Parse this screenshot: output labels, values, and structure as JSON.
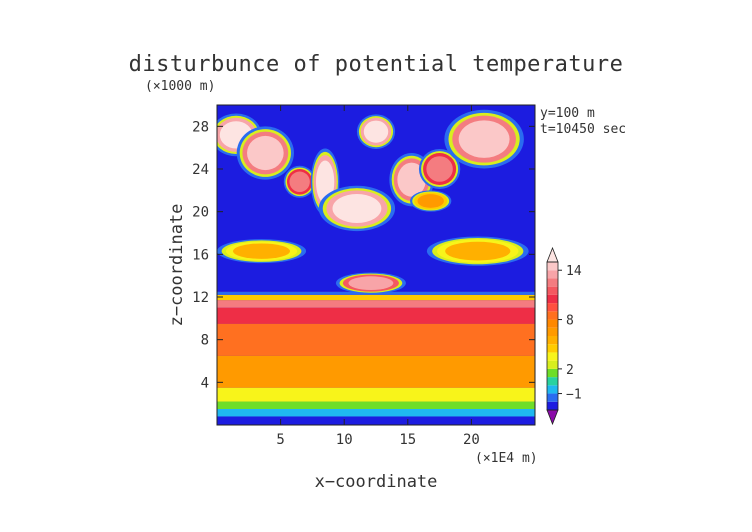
{
  "chart_data": {
    "type": "heatmap",
    "title": "disturbunce of potential temperature",
    "xlabel": "x−coordinate",
    "ylabel": "z−coordinate",
    "x_unit": "(×1E4 m)",
    "y_unit": "(×1000 m)",
    "annotations": [
      "y=100 m",
      "t=10450 sec"
    ],
    "xlim": [
      0,
      25
    ],
    "ylim": [
      0,
      30
    ],
    "x_ticks": [
      5,
      10,
      15,
      20
    ],
    "y_ticks": [
      4,
      8,
      12,
      16,
      20,
      24,
      28
    ],
    "colorbar": {
      "levels": [
        -3,
        -2,
        -1,
        0,
        1,
        2,
        3,
        4,
        5,
        6,
        7,
        8,
        9,
        10,
        11,
        12,
        13,
        14,
        15
      ],
      "colors": [
        "#8a0aa8",
        "#1c1ce0",
        "#2a6cf0",
        "#1fb8f0",
        "#28d2a0",
        "#6ede28",
        "#d8ee1e",
        "#f8f41a",
        "#ffcc00",
        "#ffb000",
        "#ff9a00",
        "#ff8800",
        "#ff7020",
        "#ff5040",
        "#ee2e46",
        "#f45860",
        "#f47c80",
        "#f8a4a8",
        "#fbc8c8",
        "#fde4e2"
      ],
      "tick_labels": [
        {
          "level": -1,
          "label": "−1"
        },
        {
          "level": 2,
          "label": "2"
        },
        {
          "level": 8,
          "label": "8"
        },
        {
          "level": 14,
          "label": "14"
        }
      ]
    },
    "layers": [
      {
        "z_bottom": 0.0,
        "z_top": 0.8,
        "value": -2.5
      },
      {
        "z_bottom": 0.8,
        "z_top": 1.5,
        "value": -0.5
      },
      {
        "z_bottom": 1.5,
        "z_top": 2.2,
        "value": 1.5
      },
      {
        "z_bottom": 2.2,
        "z_top": 3.5,
        "value": 3.5
      },
      {
        "z_bottom": 3.5,
        "z_top": 6.5,
        "value": 6.0
      },
      {
        "z_bottom": 6.5,
        "z_top": 9.5,
        "value": 8.5
      },
      {
        "z_bottom": 9.5,
        "z_top": 11.0,
        "value": 10.5
      },
      {
        "z_bottom": 11.0,
        "z_top": 11.7,
        "value": 12.5
      },
      {
        "z_bottom": 11.7,
        "z_top": 12.2,
        "value": 4.0
      },
      {
        "z_bottom": 12.2,
        "z_top": 12.5,
        "value": -1.5
      },
      {
        "z_bottom": 12.5,
        "z_top": 30.0,
        "value": -3.0
      }
    ],
    "warm_blobs": [
      {
        "x": 12.1,
        "z": 13.3,
        "rx": 2.2,
        "rz": 0.8,
        "value": 13.5
      },
      {
        "x": 1.5,
        "z": 27.2,
        "rx": 1.6,
        "rz": 1.6,
        "value": 15.5
      },
      {
        "x": 3.8,
        "z": 25.5,
        "rx": 1.8,
        "rz": 2.0,
        "value": 14.5
      },
      {
        "x": 6.5,
        "z": 22.8,
        "rx": 1.0,
        "rz": 1.2,
        "value": 12.0
      },
      {
        "x": 8.5,
        "z": 22.8,
        "rx": 0.9,
        "rz": 2.5,
        "value": 15.0
      },
      {
        "x": 11.0,
        "z": 20.3,
        "rx": 2.4,
        "rz": 1.7,
        "value": 15.5
      },
      {
        "x": 12.5,
        "z": 27.5,
        "rx": 1.2,
        "rz": 1.3,
        "value": 15.5
      },
      {
        "x": 15.3,
        "z": 23.0,
        "rx": 1.4,
        "rz": 2.0,
        "value": 14.5
      },
      {
        "x": 17.5,
        "z": 24.0,
        "rx": 1.3,
        "rz": 1.5,
        "value": 12.0
      },
      {
        "x": 21.0,
        "z": 26.8,
        "rx": 2.5,
        "rz": 2.2,
        "value": 14.0
      },
      {
        "x": 3.5,
        "z": 16.3,
        "rx": 2.8,
        "rz": 0.9,
        "value": 5.0
      },
      {
        "x": 20.5,
        "z": 16.3,
        "rx": 3.2,
        "rz": 1.1,
        "value": 5.0
      },
      {
        "x": 16.8,
        "z": 21.0,
        "rx": 1.3,
        "rz": 0.8,
        "value": 6.0
      }
    ]
  }
}
